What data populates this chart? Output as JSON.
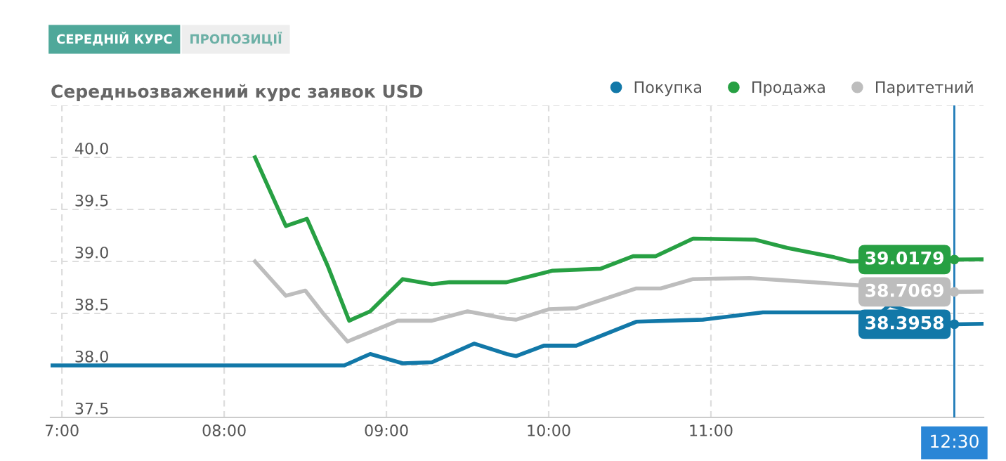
{
  "chart_data": {
    "type": "line",
    "title": "Середньозважений курс заявок USD",
    "annotations": [
      "СЕРЕДНІЙ КУРС",
      "ПРОПОЗИЦІЇ"
    ],
    "xlim": [
      6.93,
      12.68
    ],
    "ylim": [
      37.5,
      40.5
    ],
    "xticks": [
      {
        "value": 7,
        "label": "7:00"
      },
      {
        "value": 8,
        "label": "08:00"
      },
      {
        "value": 9,
        "label": "09:00"
      },
      {
        "value": 10,
        "label": "10:00"
      },
      {
        "value": 11,
        "label": "11:00"
      }
    ],
    "yticks": [
      {
        "value": 37.5,
        "label": "37.5"
      },
      {
        "value": 38,
        "label": "38.0"
      },
      {
        "value": 38.5,
        "label": "38.5"
      },
      {
        "value": 39,
        "label": "39.0"
      },
      {
        "value": 39.5,
        "label": "39.5"
      },
      {
        "value": 40,
        "label": "40.0"
      },
      {
        "value": 40.5,
        "label": null
      }
    ],
    "grid": true,
    "legend": "top right",
    "marker": "none",
    "line_style": "solid",
    "ref_lines": [
      {
        "axis": "x",
        "value": 12.5,
        "label": "12:30",
        "color": "#1f7bb8"
      }
    ],
    "series": [
      {
        "name": "Покупка",
        "color": "#1278a8",
        "x": [
          6.93,
          8.74,
          8.9,
          9.1,
          9.28,
          9.54,
          9.74,
          9.8,
          9.97,
          10.17,
          10.54,
          10.95,
          11.32,
          12.05,
          12.1,
          12.5,
          12.67
        ],
        "values": [
          38.0,
          38.0,
          38.11,
          38.02,
          38.03,
          38.21,
          38.11,
          38.09,
          38.19,
          38.19,
          38.42,
          38.44,
          38.51,
          38.51,
          38.58,
          38.3958,
          38.4
        ],
        "value_labels": [
          null,
          null,
          null,
          null,
          null,
          null,
          null,
          null,
          null,
          null,
          null,
          null,
          null,
          null,
          null,
          "38.3958",
          null
        ]
      },
      {
        "name": "Продажа",
        "color": "#27a043",
        "x": [
          8.19,
          8.38,
          8.51,
          8.64,
          8.77,
          8.9,
          9.1,
          9.28,
          9.39,
          9.74,
          10.02,
          10.32,
          10.52,
          10.66,
          10.89,
          11.27,
          11.47,
          11.76,
          11.86,
          12.5,
          12.67
        ],
        "values": [
          40.0,
          39.34,
          39.41,
          38.95,
          38.43,
          38.52,
          38.83,
          38.78,
          38.8,
          38.8,
          38.91,
          38.93,
          39.05,
          39.05,
          39.22,
          39.21,
          39.13,
          39.04,
          39.0,
          39.0179,
          39.02
        ],
        "value_labels": [
          null,
          null,
          null,
          null,
          null,
          null,
          null,
          null,
          null,
          null,
          null,
          null,
          null,
          null,
          null,
          null,
          null,
          null,
          null,
          "39.0179",
          null
        ]
      },
      {
        "name": "Паритетний",
        "color": "#bdbdbd",
        "x": [
          8.19,
          8.38,
          8.5,
          8.61,
          8.76,
          9.07,
          9.28,
          9.5,
          9.74,
          9.8,
          10.0,
          10.17,
          10.54,
          10.69,
          10.89,
          11.24,
          11.62,
          12.5,
          12.67
        ],
        "values": [
          39.0,
          38.67,
          38.72,
          38.5,
          38.23,
          38.43,
          38.43,
          38.52,
          38.45,
          38.44,
          38.54,
          38.55,
          38.74,
          38.74,
          38.83,
          38.84,
          38.8,
          38.7069,
          38.71
        ],
        "value_labels": [
          null,
          null,
          null,
          null,
          null,
          null,
          null,
          null,
          null,
          null,
          null,
          null,
          null,
          null,
          null,
          null,
          null,
          "38.7069",
          null
        ]
      }
    ]
  }
}
